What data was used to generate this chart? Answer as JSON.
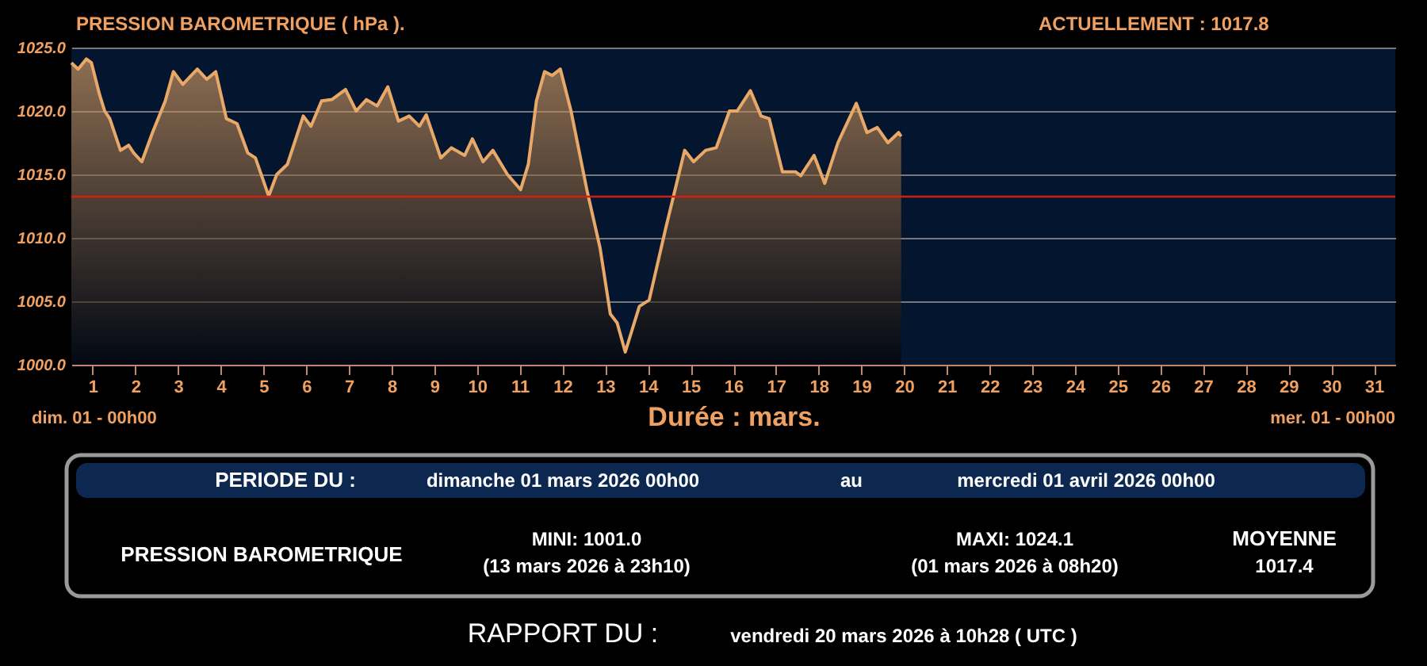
{
  "chart_data": {
    "type": "area",
    "title": "PRESSION BAROMETRIQUE ( hPa ).",
    "xlabel": "Durée : mars.",
    "annotations": [
      "ACTUELLEMENT :     1017.8",
      "dim. 01 - 00h00",
      "mer. 01 - 00h00",
      "PERIODE DU    :",
      "dimanche 01 mars 2026 00h00",
      "au",
      "mercredi 01 avril 2026 00h00",
      "PRESSION BAROMETRIQUE",
      "MINI:  1001.0",
      "(13 mars 2026 à 23h10)",
      "MAXI:  1024.1",
      "(01 mars 2026 à 08h20)",
      "MOYENNE",
      "1017.4",
      "RAPPORT DU :",
      "vendredi 20 mars 2026 à 10h28 ( UTC )"
    ],
    "x": [
      0,
      0.16,
      0.35,
      0.47,
      0.66,
      0.78,
      0.9,
      1.15,
      1.34,
      1.46,
      1.65,
      1.9,
      2.2,
      2.39,
      2.61,
      2.95,
      3.17,
      3.38,
      3.63,
      3.88,
      4.13,
      4.31,
      4.62,
      4.81,
      5.06,
      5.43,
      5.61,
      5.86,
      6.1,
      6.42,
      6.67,
      6.91,
      7.16,
      7.41,
      7.66,
      7.91,
      8.15,
      8.31,
      8.65,
      8.9,
      9.21,
      9.39,
      9.64,
      9.87,
      10.21,
      10.52,
      10.7,
      10.89,
      11.08,
      11.26,
      11.45,
      11.7,
      12.07,
      12.38,
      12.62,
      12.78,
      12.97,
      13.3,
      13.53,
      13.92,
      14.36,
      14.57,
      14.85,
      15.1,
      15.41,
      15.59,
      15.9,
      16.15,
      16.34,
      16.65,
      16.96,
      17.08,
      17.39,
      17.64,
      17.95,
      18.13,
      18.38,
      18.63,
      18.87,
      19.12,
      19.37,
      19.43
    ],
    "series": [
      {
        "color": "#e8a868",
        "values": [
          1023.8,
          1023.3,
          1024.1,
          1023.8,
          1021.3,
          1020.0,
          1019.4,
          1016.9,
          1017.3,
          1016.7,
          1016.0,
          1018.3,
          1020.8,
          1023.1,
          1022.1,
          1023.3,
          1022.5,
          1023.1,
          1019.4,
          1019.0,
          1016.7,
          1016.3,
          1013.3,
          1015.0,
          1015.8,
          1019.6,
          1018.8,
          1020.8,
          1020.9,
          1021.7,
          1020.0,
          1020.9,
          1020.4,
          1021.9,
          1019.2,
          1019.6,
          1018.8,
          1019.7,
          1016.3,
          1017.1,
          1016.5,
          1017.8,
          1016.0,
          1016.9,
          1015.0,
          1013.8,
          1015.8,
          1020.8,
          1023.1,
          1022.8,
          1023.3,
          1020.0,
          1013.8,
          1009.2,
          1004.0,
          1003.3,
          1001.0,
          1004.6,
          1005.1,
          1010.8,
          1016.9,
          1016.0,
          1016.9,
          1017.1,
          1020.0,
          1020.0,
          1021.6,
          1019.6,
          1019.4,
          1015.2,
          1015.2,
          1014.9,
          1016.5,
          1014.3,
          1017.5,
          1018.8,
          1020.6,
          1018.3,
          1018.7,
          1017.5,
          1018.3,
          1018.0
        ]
      }
    ],
    "xlim": [
      0,
      31
    ],
    "xticks": [
      {
        "value": 0.5,
        "label": "1"
      },
      {
        "value": 1.5,
        "label": "2"
      },
      {
        "value": 2.5,
        "label": "3"
      },
      {
        "value": 3.5,
        "label": "4"
      },
      {
        "value": 4.5,
        "label": "5"
      },
      {
        "value": 5.5,
        "label": "6"
      },
      {
        "value": 6.5,
        "label": "7"
      },
      {
        "value": 7.5,
        "label": "8"
      },
      {
        "value": 8.5,
        "label": "9"
      },
      {
        "value": 9.5,
        "label": "10"
      },
      {
        "value": 10.5,
        "label": "11"
      },
      {
        "value": 11.5,
        "label": "12"
      },
      {
        "value": 12.5,
        "label": "13"
      },
      {
        "value": 13.5,
        "label": "14"
      },
      {
        "value": 14.5,
        "label": "15"
      },
      {
        "value": 15.5,
        "label": "16"
      },
      {
        "value": 16.5,
        "label": "17"
      },
      {
        "value": 17.5,
        "label": "18"
      },
      {
        "value": 18.5,
        "label": "19"
      },
      {
        "value": 19.5,
        "label": "20"
      },
      {
        "value": 20.5,
        "label": "21"
      },
      {
        "value": 21.5,
        "label": "22"
      },
      {
        "value": 22.5,
        "label": "23"
      },
      {
        "value": 23.5,
        "label": "24"
      },
      {
        "value": 24.5,
        "label": "25"
      },
      {
        "value": 25.5,
        "label": "26"
      },
      {
        "value": 26.5,
        "label": "27"
      },
      {
        "value": 27.5,
        "label": "28"
      },
      {
        "value": 28.5,
        "label": "29"
      },
      {
        "value": 29.5,
        "label": "30"
      },
      {
        "value": 30.5,
        "label": "31"
      }
    ],
    "ylim": [
      1000,
      1025
    ],
    "yticks": [
      {
        "value": 1000,
        "label": "1000.0"
      },
      {
        "value": 1005,
        "label": "1005.0"
      },
      {
        "value": 1010,
        "label": "1010.0"
      },
      {
        "value": 1015,
        "label": "1015.0"
      },
      {
        "value": 1020,
        "label": "1020.0"
      },
      {
        "value": 1025,
        "label": "1025.0"
      }
    ],
    "ref_lines": [
      {
        "axis": "y",
        "value": 1013.25,
        "color": "#d02010"
      }
    ],
    "grid": "y"
  }
}
